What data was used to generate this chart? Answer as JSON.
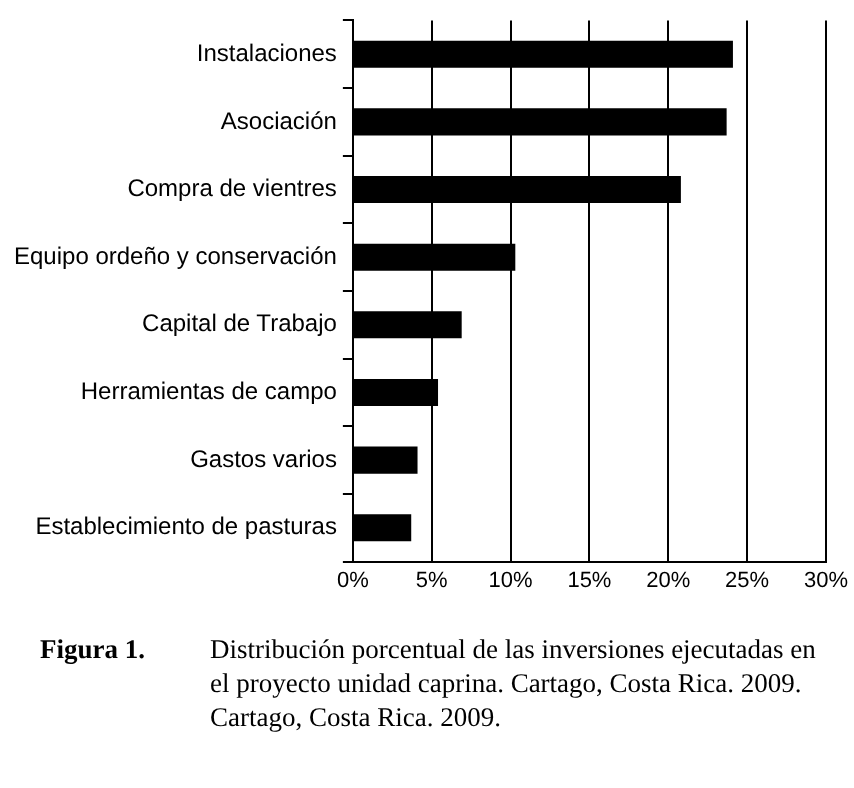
{
  "chart_data": {
    "type": "bar",
    "orientation": "horizontal",
    "categories": [
      "Instalaciones",
      "Asociación",
      "Compra de vientres",
      "Equipo ordeño y conservación",
      "Capital de Trabajo",
      "Herramientas de campo",
      "Gastos varios",
      "Establecimiento de pasturas"
    ],
    "values": [
      24.1,
      23.7,
      20.8,
      10.3,
      6.9,
      5.4,
      4.1,
      3.7
    ],
    "color": "#000000",
    "xlim": [
      0,
      30
    ],
    "xticks": [
      {
        "value": 0,
        "label": "0%"
      },
      {
        "value": 5,
        "label": "5%"
      },
      {
        "value": 10,
        "label": "10%"
      },
      {
        "value": 15,
        "label": "15%"
      },
      {
        "value": 20,
        "label": "20%"
      },
      {
        "value": 25,
        "label": "25%"
      },
      {
        "value": 30,
        "label": "30%"
      }
    ],
    "grid": "x",
    "legend": false,
    "annotations": [
      "Figura 1.",
      "Distribución porcentual de las inversiones ejecutadas en el proyecto unidad caprina. Cartago, Costa Rica. 2009. Cartago, Costa Rica. 2009."
    ]
  }
}
